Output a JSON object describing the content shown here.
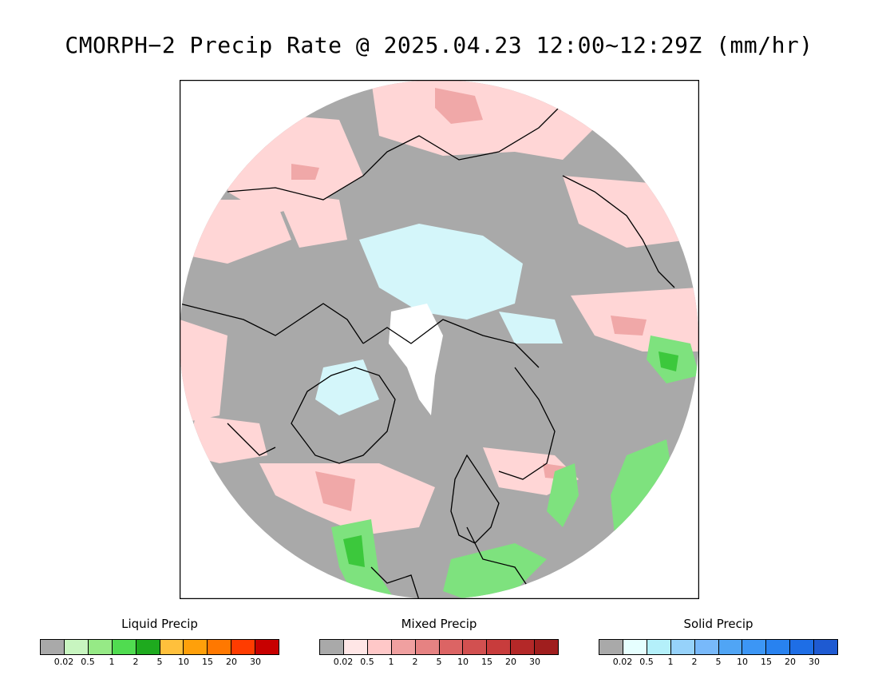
{
  "title": "CMORPH−2 Precip Rate @ 2025.04.23 12:00~12:29Z (mm/hr)",
  "map": {
    "projection": "north-polar-stereographic",
    "background_color": "#a9a9a9",
    "frame_color": "#000000",
    "coastline_color": "#000000"
  },
  "legends": [
    {
      "id": "liquid",
      "title": "Liquid Precip",
      "ticks": [
        "0.02",
        "0.5",
        "1",
        "2",
        "5",
        "10",
        "15",
        "20",
        "30"
      ],
      "colors": [
        "#a9a9a9",
        "#c8f5c0",
        "#96ea86",
        "#50dc50",
        "#1eaa1e",
        "#ffc03c",
        "#ffa00a",
        "#ff7800",
        "#ff3c00",
        "#c80000"
      ]
    },
    {
      "id": "mixed",
      "title": "Mixed Precip",
      "ticks": [
        "0.02",
        "0.5",
        "1",
        "2",
        "5",
        "10",
        "15",
        "20",
        "30"
      ],
      "colors": [
        "#a9a9a9",
        "#ffe6e6",
        "#ffc8c8",
        "#f0a0a0",
        "#e68282",
        "#dc6464",
        "#d25050",
        "#c83c3c",
        "#b42828",
        "#a01e1e"
      ]
    },
    {
      "id": "solid",
      "title": "Solid Precip",
      "ticks": [
        "0.02",
        "0.5",
        "1",
        "2",
        "5",
        "10",
        "15",
        "20",
        "30"
      ],
      "colors": [
        "#a9a9a9",
        "#e6ffff",
        "#b4f0fa",
        "#96d2fa",
        "#78b9fa",
        "#50a5f5",
        "#3c96f5",
        "#2882f0",
        "#1e6ee6",
        "#1e5ad2"
      ]
    }
  ]
}
